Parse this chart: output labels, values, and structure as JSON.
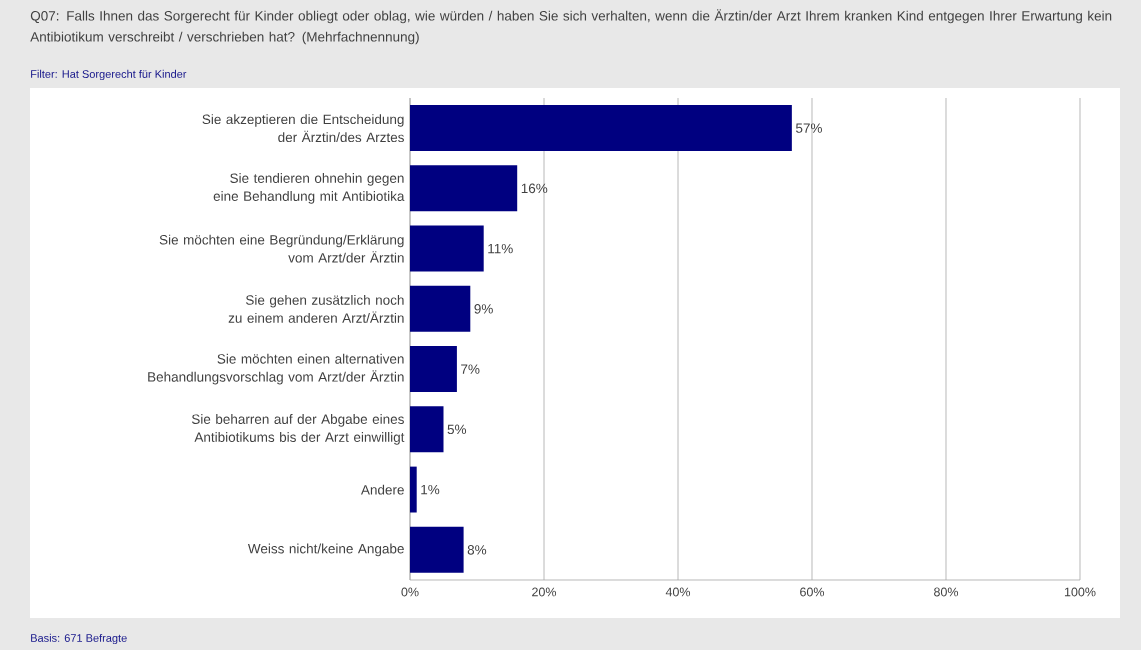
{
  "chart_data": {
    "type": "bar",
    "orientation": "horizontal",
    "title": "Q07: Falls Ihnen das Sorgerecht für Kinder obliegt oder oblag, wie würden / haben Sie sich verhalten, wenn die Ärztin/der Arzt Ihrem kranken Kind entgegen Ihrer Erwartung kein Antibiotikum verschreibt / verschrieben hat? (Mehrfachnennung)",
    "subtitle": "Filter: Hat Sorgerecht für Kinder",
    "annotations": [
      "Basis: 671 Befragte"
    ],
    "categories": [
      "Sie akzeptieren die Entscheidung der Ärztin/des Arztes",
      "Sie tendieren ohnehin gegen eine Behandlung mit Antibiotika",
      "Sie möchten eine Begründung/Erklärung vom Arzt/der Ärztin",
      "Sie gehen zusätzlich noch zu einem anderen Arzt/Ärztin",
      "Sie möchten einen alternativen Behandlungsvorschlag vom Arzt/der Ärztin",
      "Sie beharren auf der Abgabe eines Antibiotikums bis der Arzt einwilligt",
      "Andere",
      "Weiss nicht/keine Angabe"
    ],
    "values": [
      57,
      16,
      11,
      9,
      7,
      5,
      1,
      8
    ],
    "value_labels": [
      "57%",
      "16%",
      "11%",
      "9%",
      "7%",
      "5%",
      "1%",
      "8%"
    ],
    "color": "#000080",
    "xlim": [
      0,
      100
    ],
    "xticks": [
      {
        "value": 0,
        "label": "0%"
      },
      {
        "value": 20,
        "label": "20%"
      },
      {
        "value": 40,
        "label": "40%"
      },
      {
        "value": 60,
        "label": "60%"
      },
      {
        "value": 80,
        "label": "80%"
      },
      {
        "value": 100,
        "label": "100%"
      }
    ],
    "grid": "x"
  }
}
